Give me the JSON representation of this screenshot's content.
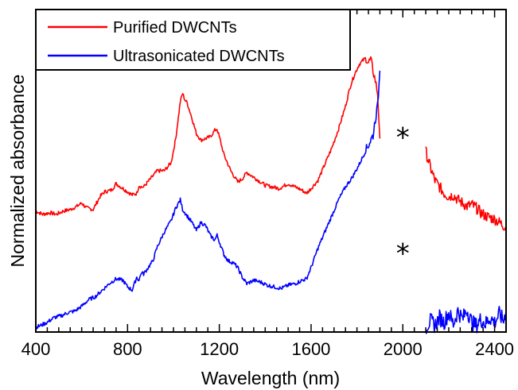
{
  "chart_data": {
    "type": "line",
    "title": "",
    "xlabel": "Wavelength (nm)",
    "ylabel": "Normalized absorbance",
    "xlim": [
      400,
      2450
    ],
    "ylim": [
      0,
      1
    ],
    "x_ticks": [
      400,
      800,
      1200,
      1600,
      2000,
      2400
    ],
    "x_tick_labels": [
      "400",
      "800",
      "1200",
      "1600",
      "2000",
      "2400"
    ],
    "y_tick_labels_shown": false,
    "grid": false,
    "legend": {
      "placement": "top-left",
      "entries": [
        "Purified DWCNTs",
        "Ultrasonicated DWCNTs"
      ]
    },
    "annotations": [
      {
        "text": "*",
        "x": 2000,
        "y": 0.61
      },
      {
        "text": "*",
        "x": 2000,
        "y": 0.25
      }
    ],
    "series": [
      {
        "name": "Purified DWCNTs",
        "color": "#ff0000",
        "segments": [
          {
            "x": [
              400,
              430,
              460,
              490,
              520,
              550,
              580,
              600,
              620,
              650,
              680,
              700,
              730,
              750,
              780,
              800,
              820,
              840,
              850,
              860,
              870,
              900,
              930,
              960,
              990,
              1010,
              1030,
              1040,
              1050,
              1060,
              1080,
              1100,
              1120,
              1140,
              1160,
              1180,
              1190,
              1200,
              1220,
              1250,
              1280,
              1300,
              1320,
              1340,
              1370,
              1400,
              1430,
              1460,
              1500,
              1530,
              1560,
              1580,
              1600,
              1630,
              1660,
              1690,
              1720,
              1750,
              1770,
              1790,
              1810,
              1830,
              1840,
              1850,
              1860,
              1870,
              1880,
              1890,
              1900
            ],
            "y": [
              0.375,
              0.365,
              0.37,
              0.365,
              0.375,
              0.38,
              0.39,
              0.4,
              0.385,
              0.38,
              0.42,
              0.435,
              0.44,
              0.46,
              0.445,
              0.435,
              0.425,
              0.43,
              0.455,
              0.45,
              0.45,
              0.475,
              0.5,
              0.5,
              0.525,
              0.6,
              0.715,
              0.74,
              0.72,
              0.71,
              0.665,
              0.615,
              0.595,
              0.6,
              0.605,
              0.625,
              0.63,
              0.605,
              0.55,
              0.5,
              0.465,
              0.475,
              0.495,
              0.485,
              0.47,
              0.455,
              0.45,
              0.445,
              0.46,
              0.45,
              0.44,
              0.43,
              0.445,
              0.47,
              0.52,
              0.57,
              0.63,
              0.7,
              0.76,
              0.8,
              0.83,
              0.845,
              0.85,
              0.835,
              0.845,
              0.81,
              0.78,
              0.74,
              0.6
            ]
          },
          {
            "x": [
              2100,
              2120,
              2140,
              2160,
              2180,
              2200,
              2220,
              2240,
              2260,
              2280,
              2300,
              2320,
              2340,
              2360,
              2380,
              2400,
              2420,
              2440,
              2450
            ],
            "y": [
              0.56,
              0.51,
              0.47,
              0.45,
              0.43,
              0.42,
              0.425,
              0.41,
              0.4,
              0.39,
              0.395,
              0.385,
              0.37,
              0.36,
              0.355,
              0.35,
              0.34,
              0.33,
              0.325
            ]
          }
        ]
      },
      {
        "name": "Ultrasonicated DWCNTs",
        "color": "#0000ff",
        "segments": [
          {
            "x": [
              400,
              420,
              450,
              480,
              510,
              540,
              570,
              600,
              630,
              660,
              690,
              720,
              750,
              780,
              800,
              820,
              840,
              850,
              860,
              870,
              890,
              910,
              930,
              960,
              990,
              1010,
              1030,
              1040,
              1060,
              1080,
              1100,
              1120,
              1140,
              1160,
              1180,
              1190,
              1200,
              1220,
              1240,
              1260,
              1280,
              1300,
              1320,
              1350,
              1380,
              1410,
              1440,
              1470,
              1500,
              1530,
              1560,
              1580,
              1600,
              1630,
              1660,
              1690,
              1720,
              1750,
              1780,
              1810,
              1830,
              1850,
              1870,
              1880,
              1890,
              1900
            ],
            "y": [
              0.015,
              0.02,
              0.03,
              0.045,
              0.05,
              0.06,
              0.065,
              0.08,
              0.1,
              0.11,
              0.13,
              0.15,
              0.165,
              0.16,
              0.14,
              0.13,
              0.17,
              0.16,
              0.185,
              0.18,
              0.2,
              0.22,
              0.265,
              0.31,
              0.345,
              0.385,
              0.41,
              0.38,
              0.36,
              0.34,
              0.315,
              0.34,
              0.33,
              0.3,
              0.285,
              0.3,
              0.28,
              0.24,
              0.22,
              0.215,
              0.2,
              0.17,
              0.15,
              0.16,
              0.155,
              0.145,
              0.14,
              0.135,
              0.145,
              0.15,
              0.16,
              0.165,
              0.2,
              0.26,
              0.31,
              0.36,
              0.41,
              0.45,
              0.48,
              0.52,
              0.55,
              0.58,
              0.61,
              0.66,
              0.7,
              0.81
            ]
          },
          {
            "x": [
              2100,
              2120,
              2140,
              2160,
              2180,
              2200,
              2220,
              2240,
              2260,
              2280,
              2300,
              2320,
              2340,
              2360,
              2380,
              2400,
              2420,
              2440,
              2450
            ],
            "y": [
              0.015,
              0.035,
              0.02,
              0.045,
              0.03,
              0.06,
              0.025,
              0.065,
              0.04,
              0.07,
              0.03,
              0.02,
              0.04,
              0.025,
              0.045,
              0.03,
              0.055,
              0.035,
              0.07
            ]
          }
        ]
      }
    ]
  }
}
